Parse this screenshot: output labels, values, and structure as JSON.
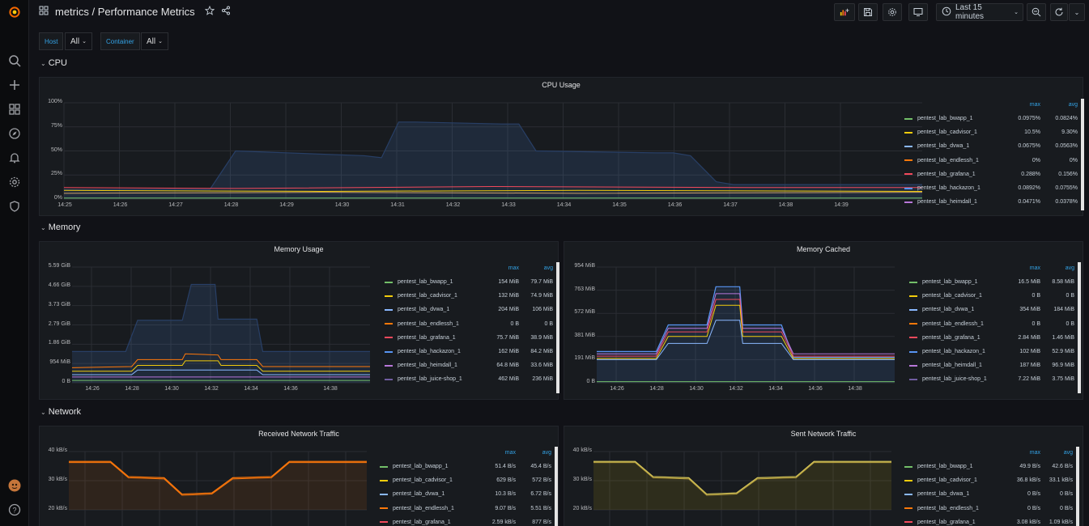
{
  "topnav": {
    "title": "metrics / Performance Metrics",
    "time_range": "Last 15 minutes"
  },
  "icons": {
    "logo": "grafana-logo-icon",
    "sidebar": [
      "search-icon",
      "plus-icon",
      "dashboards-icon",
      "explore-compass-icon",
      "alerting-bell-icon",
      "config-gear-icon",
      "shield-icon",
      "user-avatar",
      "help-icon"
    ]
  },
  "variables": [
    {
      "label": "Host",
      "value": "All"
    },
    {
      "label": "Container",
      "value": "All"
    }
  ],
  "rows": {
    "cpu": "CPU",
    "memory": "Memory",
    "network": "Network"
  },
  "legend_headers": {
    "max": "max",
    "avg": "avg"
  },
  "series_colors": {
    "pentest_lab_bwapp_1": "#73bf69",
    "pentest_lab_cadvisor_1": "#f2cc0c",
    "pentest_lab_dvwa_1": "#8ab8ff",
    "pentest_lab_endlessh_1": "#ff780a",
    "pentest_lab_grafana_1": "#f2495c",
    "pentest_lab_hackazon_1": "#5794f2",
    "pentest_lab_heimdall_1": "#b877d9",
    "pentest_lab_juice-shop_1": "#705da0"
  },
  "panels": {
    "cpu_usage": {
      "title": "CPU Usage",
      "y_ticks": [
        "100%",
        "75%",
        "50%",
        "25%",
        "0%"
      ],
      "x_ticks": [
        "14:25",
        "14:26",
        "14:27",
        "14:28",
        "14:29",
        "14:30",
        "14:31",
        "14:32",
        "14:33",
        "14:34",
        "14:35",
        "14:36",
        "14:37",
        "14:38",
        "14:39"
      ],
      "legend": [
        {
          "name": "pentest_lab_bwapp_1",
          "max": "0.0975%",
          "avg": "0.0824%"
        },
        {
          "name": "pentest_lab_cadvisor_1",
          "max": "10.5%",
          "avg": "9.30%"
        },
        {
          "name": "pentest_lab_dvwa_1",
          "max": "0.0675%",
          "avg": "0.0563%"
        },
        {
          "name": "pentest_lab_endlessh_1",
          "max": "0%",
          "avg": "0%"
        },
        {
          "name": "pentest_lab_grafana_1",
          "max": "0.288%",
          "avg": "0.156%"
        },
        {
          "name": "pentest_lab_hackazon_1",
          "max": "0.0892%",
          "avg": "0.0755%"
        },
        {
          "name": "pentest_lab_heimdall_1",
          "max": "0.0471%",
          "avg": "0.0378%"
        }
      ]
    },
    "memory_usage": {
      "title": "Memory Usage",
      "y_ticks": [
        "5.59 GiB",
        "4.66 GiB",
        "3.73 GiB",
        "2.79 GiB",
        "1.86 GiB",
        "954 MiB",
        "0 B"
      ],
      "x_ticks": [
        "14:26",
        "14:28",
        "14:30",
        "14:32",
        "14:34",
        "14:36",
        "14:38"
      ],
      "legend": [
        {
          "name": "pentest_lab_bwapp_1",
          "max": "154 MiB",
          "avg": "79.7 MiB"
        },
        {
          "name": "pentest_lab_cadvisor_1",
          "max": "132 MiB",
          "avg": "74.9 MiB"
        },
        {
          "name": "pentest_lab_dvwa_1",
          "max": "204 MiB",
          "avg": "106 MiB"
        },
        {
          "name": "pentest_lab_endlessh_1",
          "max": "0 B",
          "avg": "0 B"
        },
        {
          "name": "pentest_lab_grafana_1",
          "max": "75.7 MiB",
          "avg": "38.9 MiB"
        },
        {
          "name": "pentest_lab_hackazon_1",
          "max": "162 MiB",
          "avg": "84.2 MiB"
        },
        {
          "name": "pentest_lab_heimdall_1",
          "max": "64.8 MiB",
          "avg": "33.6 MiB"
        },
        {
          "name": "pentest_lab_juice-shop_1",
          "max": "462 MiB",
          "avg": "236 MiB"
        }
      ]
    },
    "memory_cached": {
      "title": "Memory Cached",
      "y_ticks": [
        "954 MiB",
        "763 MiB",
        "572 MiB",
        "381 MiB",
        "191 MiB",
        "0 B"
      ],
      "x_ticks": [
        "14:26",
        "14:28",
        "14:30",
        "14:32",
        "14:34",
        "14:36",
        "14:38"
      ],
      "legend": [
        {
          "name": "pentest_lab_bwapp_1",
          "max": "16.5 MiB",
          "avg": "8.58 MiB"
        },
        {
          "name": "pentest_lab_cadvisor_1",
          "max": "0 B",
          "avg": "0 B"
        },
        {
          "name": "pentest_lab_dvwa_1",
          "max": "354 MiB",
          "avg": "184 MiB"
        },
        {
          "name": "pentest_lab_endlessh_1",
          "max": "0 B",
          "avg": "0 B"
        },
        {
          "name": "pentest_lab_grafana_1",
          "max": "2.84 MiB",
          "avg": "1.46 MiB"
        },
        {
          "name": "pentest_lab_hackazon_1",
          "max": "102 MiB",
          "avg": "52.9 MiB"
        },
        {
          "name": "pentest_lab_heimdall_1",
          "max": "187 MiB",
          "avg": "96.9 MiB"
        },
        {
          "name": "pentest_lab_juice-shop_1",
          "max": "7.22 MiB",
          "avg": "3.75 MiB"
        }
      ]
    },
    "received_network": {
      "title": "Received Network Traffic",
      "y_ticks": [
        "40 kB/s",
        "30 kB/s",
        "20 kB/s"
      ],
      "legend": [
        {
          "name": "pentest_lab_bwapp_1",
          "max": "51.4 B/s",
          "avg": "45.4 B/s"
        },
        {
          "name": "pentest_lab_cadvisor_1",
          "max": "629 B/s",
          "avg": "572 B/s"
        },
        {
          "name": "pentest_lab_dvwa_1",
          "max": "10.3 B/s",
          "avg": "6.72 B/s"
        },
        {
          "name": "pentest_lab_endlessh_1",
          "max": "9.07 B/s",
          "avg": "5.51 B/s"
        },
        {
          "name": "pentest_lab_grafana_1",
          "max": "2.59 kB/s",
          "avg": "877 B/s"
        }
      ]
    },
    "sent_network": {
      "title": "Sent Network Traffic",
      "y_ticks": [
        "40 kB/s",
        "30 kB/s",
        "20 kB/s"
      ],
      "legend": [
        {
          "name": "pentest_lab_bwapp_1",
          "max": "49.9 B/s",
          "avg": "42.6 B/s"
        },
        {
          "name": "pentest_lab_cadvisor_1",
          "max": "36.8 kB/s",
          "avg": "33.1 kB/s"
        },
        {
          "name": "pentest_lab_dvwa_1",
          "max": "0 B/s",
          "avg": "0 B/s"
        },
        {
          "name": "pentest_lab_endlessh_1",
          "max": "0 B/s",
          "avg": "0 B/s"
        },
        {
          "name": "pentest_lab_grafana_1",
          "max": "3.08 kB/s",
          "avg": "1.09 kB/s"
        }
      ]
    }
  }
}
